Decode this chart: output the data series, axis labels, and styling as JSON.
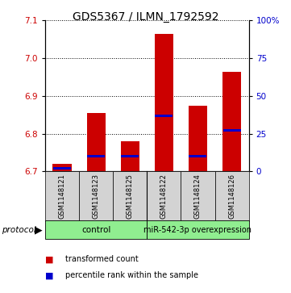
{
  "title": "GDS5367 / ILMN_1792592",
  "samples": [
    "GSM1148121",
    "GSM1148123",
    "GSM1148125",
    "GSM1148122",
    "GSM1148124",
    "GSM1148126"
  ],
  "red_values": [
    6.72,
    6.855,
    6.78,
    7.065,
    6.875,
    6.965
  ],
  "blue_values_pct": [
    2,
    10,
    10,
    37,
    10,
    27
  ],
  "ylim": [
    6.7,
    7.1
  ],
  "left_yticks": [
    6.7,
    6.8,
    6.9,
    7.0,
    7.1
  ],
  "right_yticks": [
    0,
    25,
    50,
    75,
    100
  ],
  "red_color": "#CC0000",
  "blue_color": "#0000CC",
  "bar_width": 0.55,
  "base_value": 6.7,
  "title_fontsize": 10,
  "tick_fontsize": 7.5,
  "sample_fontsize": 6.0,
  "legend_fontsize": 7.0,
  "protocol_fontsize": 7.5
}
